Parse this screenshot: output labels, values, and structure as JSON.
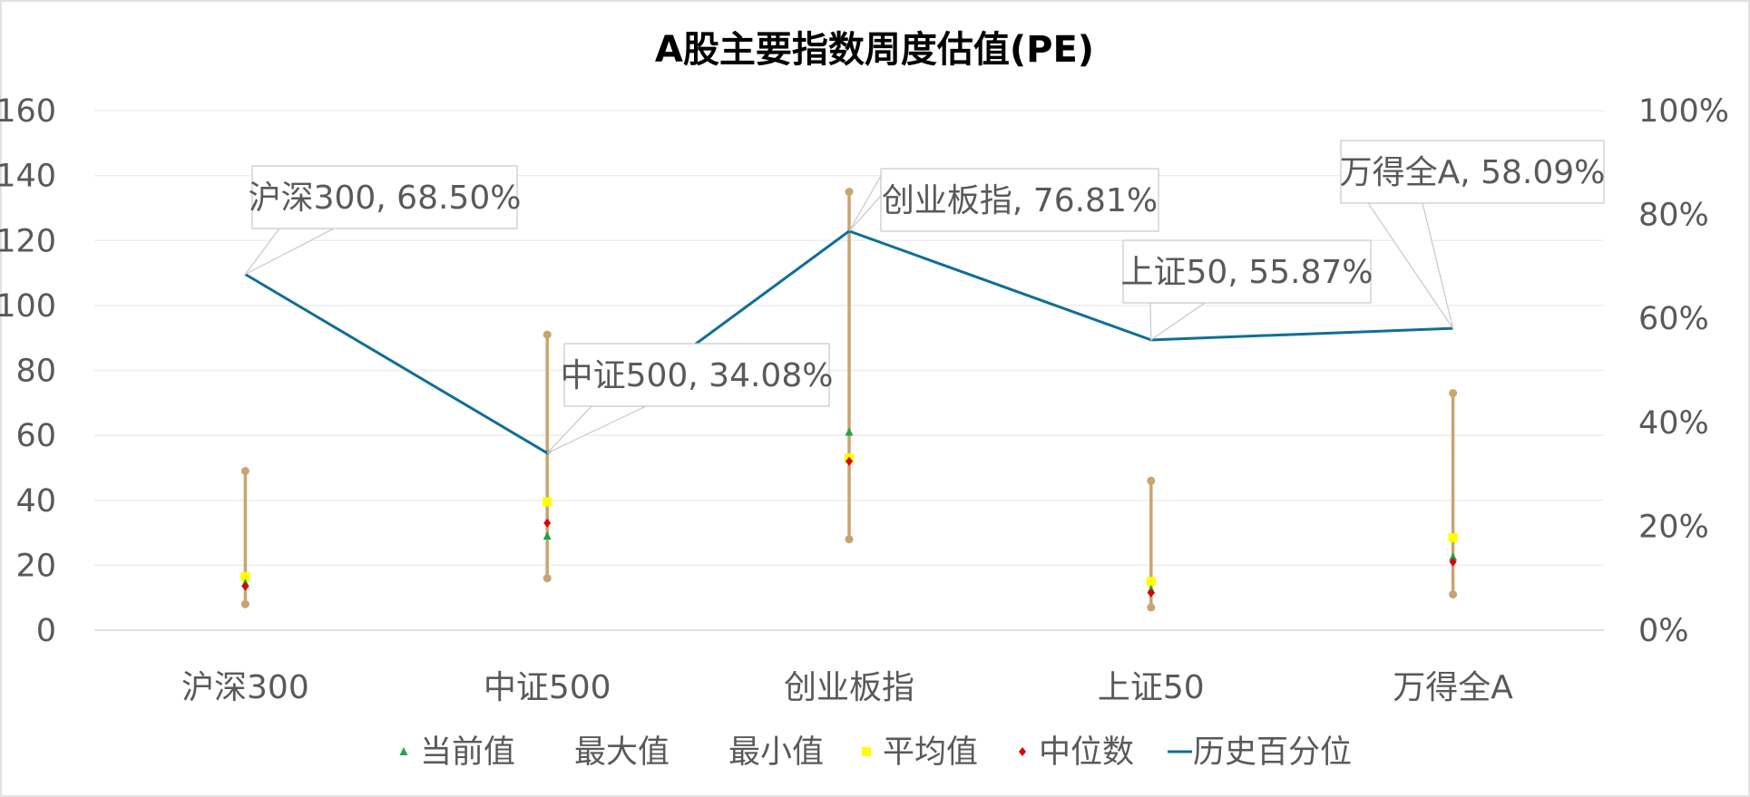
{
  "colors": {
    "range_line": "#C9A46E",
    "percentile_line": "#0F6F96",
    "current": "#1FA64A",
    "average": "#FFFF00",
    "median": "#E00000",
    "axis_text": "#595959",
    "gridline": "#EDEDED",
    "callout_border": "#C8C8C8"
  },
  "chart_data": {
    "type": "line",
    "title": "A股主要指数周度估值(PE)",
    "categories": [
      "沪深300",
      "中证500",
      "创业板指",
      "上证50",
      "万得全A"
    ],
    "y_left": {
      "ticks": [
        "0",
        "20",
        "40",
        "60",
        "80",
        "100",
        "120",
        "140",
        "160"
      ],
      "min": 0,
      "max": 160
    },
    "y_right": {
      "ticks": [
        "0%",
        "20%",
        "40%",
        "60%",
        "80%",
        "100%"
      ],
      "min": 0,
      "max": 100
    },
    "series": [
      {
        "name": "当前值",
        "axis": "left",
        "marker": "triangle",
        "values": [
          14.5,
          29,
          61,
          12.5,
          22.5
        ]
      },
      {
        "name": "最大值",
        "axis": "left",
        "marker": "circle",
        "values": [
          49,
          91,
          135,
          46,
          73
        ]
      },
      {
        "name": "最小值",
        "axis": "left",
        "marker": "circle",
        "values": [
          8,
          16,
          28,
          7,
          11
        ]
      },
      {
        "name": "平均值",
        "axis": "left",
        "marker": "square",
        "values": [
          16.5,
          39.5,
          53,
          15,
          28.5
        ]
      },
      {
        "name": "中位数",
        "axis": "left",
        "marker": "diamond",
        "values": [
          13.5,
          33,
          52,
          11.5,
          21
        ]
      },
      {
        "name": "历史百分位",
        "axis": "right",
        "marker": "line",
        "values": [
          68.5,
          34.08,
          76.81,
          55.87,
          58.09
        ]
      }
    ],
    "callouts": [
      "沪深300, 68.50%",
      "中证500, 34.08%",
      "创业板指, 76.81%",
      "上证50, 55.87%",
      "万得全A, 58.09%"
    ],
    "legend_position": "bottom",
    "grid": true
  }
}
